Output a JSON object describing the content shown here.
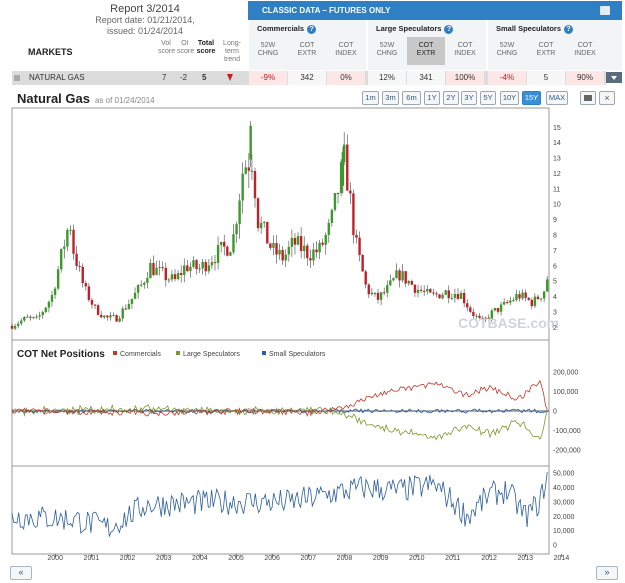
{
  "report": {
    "title": "Report 3/2014",
    "date": "Report date: 01/21/2014,",
    "issued": "issued: 01/24/2014"
  },
  "markets_header": "MARKETS",
  "score_headers": {
    "vol": [
      "Vol",
      "score"
    ],
    "oi": [
      "OI",
      "score"
    ],
    "total": [
      "Total",
      "score"
    ],
    "trend": [
      "Long-",
      "term",
      "trend"
    ]
  },
  "classic": {
    "label": "CLASSIC DATA – FUTURES ONLY",
    "groups": [
      "Commercials",
      "Large Speculators",
      "Small Speculators"
    ],
    "help": "?"
  },
  "subheaders": [
    [
      "52W",
      "CHNG"
    ],
    [
      "COT",
      "EXTR"
    ],
    [
      "COT",
      "INDEX"
    ],
    [
      "52W",
      "CHNG"
    ],
    [
      "COT",
      "EXTR"
    ],
    [
      "COT",
      "INDEX"
    ],
    [
      "52W",
      "CHNG"
    ],
    [
      "COT",
      "EXTR"
    ],
    [
      "COT",
      "INDEX"
    ]
  ],
  "row": {
    "name": "NATURAL GAS",
    "vol": "7",
    "oi": "-2",
    "total": "5",
    "values": [
      "-9%",
      "342",
      "0%",
      "12%",
      "341",
      "100%",
      "-4%",
      "5",
      "90%"
    ]
  },
  "chart": {
    "title": "Natural Gas",
    "as_of": "as of 01/24/2014",
    "zoom_buttons": [
      "1m",
      "3m",
      "6m",
      "1Y",
      "2Y",
      "3Y",
      "5Y",
      "10Y",
      "15Y",
      "MAX"
    ],
    "active_zoom": "15Y",
    "close": "×",
    "watermark": "COTBASE.com",
    "nav": {
      "prev": "«",
      "next": "»"
    }
  },
  "chart_data": [
    {
      "type": "candlestick",
      "title": "Natural Gas",
      "x_ticks": [
        "2000",
        "2001",
        "2002",
        "2003",
        "2004",
        "2005",
        "2006",
        "2007",
        "2008",
        "2009",
        "2010",
        "2011",
        "2012",
        "2013",
        "2014"
      ],
      "y_ticks": [
        2,
        3,
        4,
        5,
        6,
        7,
        8,
        9,
        10,
        11,
        12,
        13,
        14,
        15
      ],
      "ylim": [
        1.5,
        15.8
      ],
      "close_profile": {
        "x": [
          1999.3,
          1999.7,
          2000.0,
          2000.4,
          2000.9,
          2001.0,
          2001.3,
          2001.6,
          2001.9,
          2002.2,
          2002.6,
          2002.9,
          2003.1,
          2003.4,
          2003.8,
          2004.1,
          2004.5,
          2004.8,
          2005.1,
          2005.4,
          2005.7,
          2005.95,
          2006.1,
          2006.5,
          2006.8,
          2007.1,
          2007.5,
          2007.8,
          2008.1,
          2008.5,
          2008.8,
          2009.1,
          2009.4,
          2009.7,
          2010.0,
          2010.5,
          2010.9,
          2011.3,
          2011.7,
          2012.0,
          2012.3,
          2012.6,
          2012.9,
          2013.3,
          2013.7,
          2014.0,
          2014.1
        ],
        "y": [
          2.1,
          2.6,
          2.5,
          4.0,
          9.0,
          7.0,
          4.5,
          3.2,
          2.6,
          2.6,
          3.8,
          4.8,
          6.0,
          5.5,
          5.0,
          6.0,
          5.8,
          6.5,
          7.0,
          7.5,
          12.5,
          13.0,
          9.0,
          7.0,
          6.5,
          7.5,
          6.8,
          7.0,
          8.5,
          13.0,
          7.5,
          4.5,
          3.8,
          4.5,
          5.5,
          4.5,
          4.0,
          4.3,
          4.2,
          3.0,
          2.3,
          3.0,
          3.4,
          4.1,
          3.6,
          4.3,
          5.2
        ]
      }
    },
    {
      "type": "line",
      "title": "COT Net Positions",
      "series": [
        {
          "name": "Commercials",
          "color": "#c0392b"
        },
        {
          "name": "Large Speculators",
          "color": "#7a9a2a"
        },
        {
          "name": "Small Speculators",
          "color": "#2c5f9e"
        }
      ],
      "y_ticks": [
        "200,000",
        "100,000",
        "0",
        "-100,000",
        "-200,000"
      ],
      "ylim": [
        -250000,
        250000
      ]
    },
    {
      "type": "line",
      "series": [
        {
          "name": "Small Speculators",
          "color": "#2c5f9e"
        }
      ],
      "y_ticks": [
        "50,000",
        "40,000",
        "30,000",
        "20,000",
        "10,000",
        "0"
      ],
      "ylim": [
        0,
        55000
      ]
    }
  ],
  "colors": {
    "header_blue": "#2e7fc4",
    "up": "#3a9a2a",
    "down": "#c0202a",
    "negative": "#c0202a"
  }
}
